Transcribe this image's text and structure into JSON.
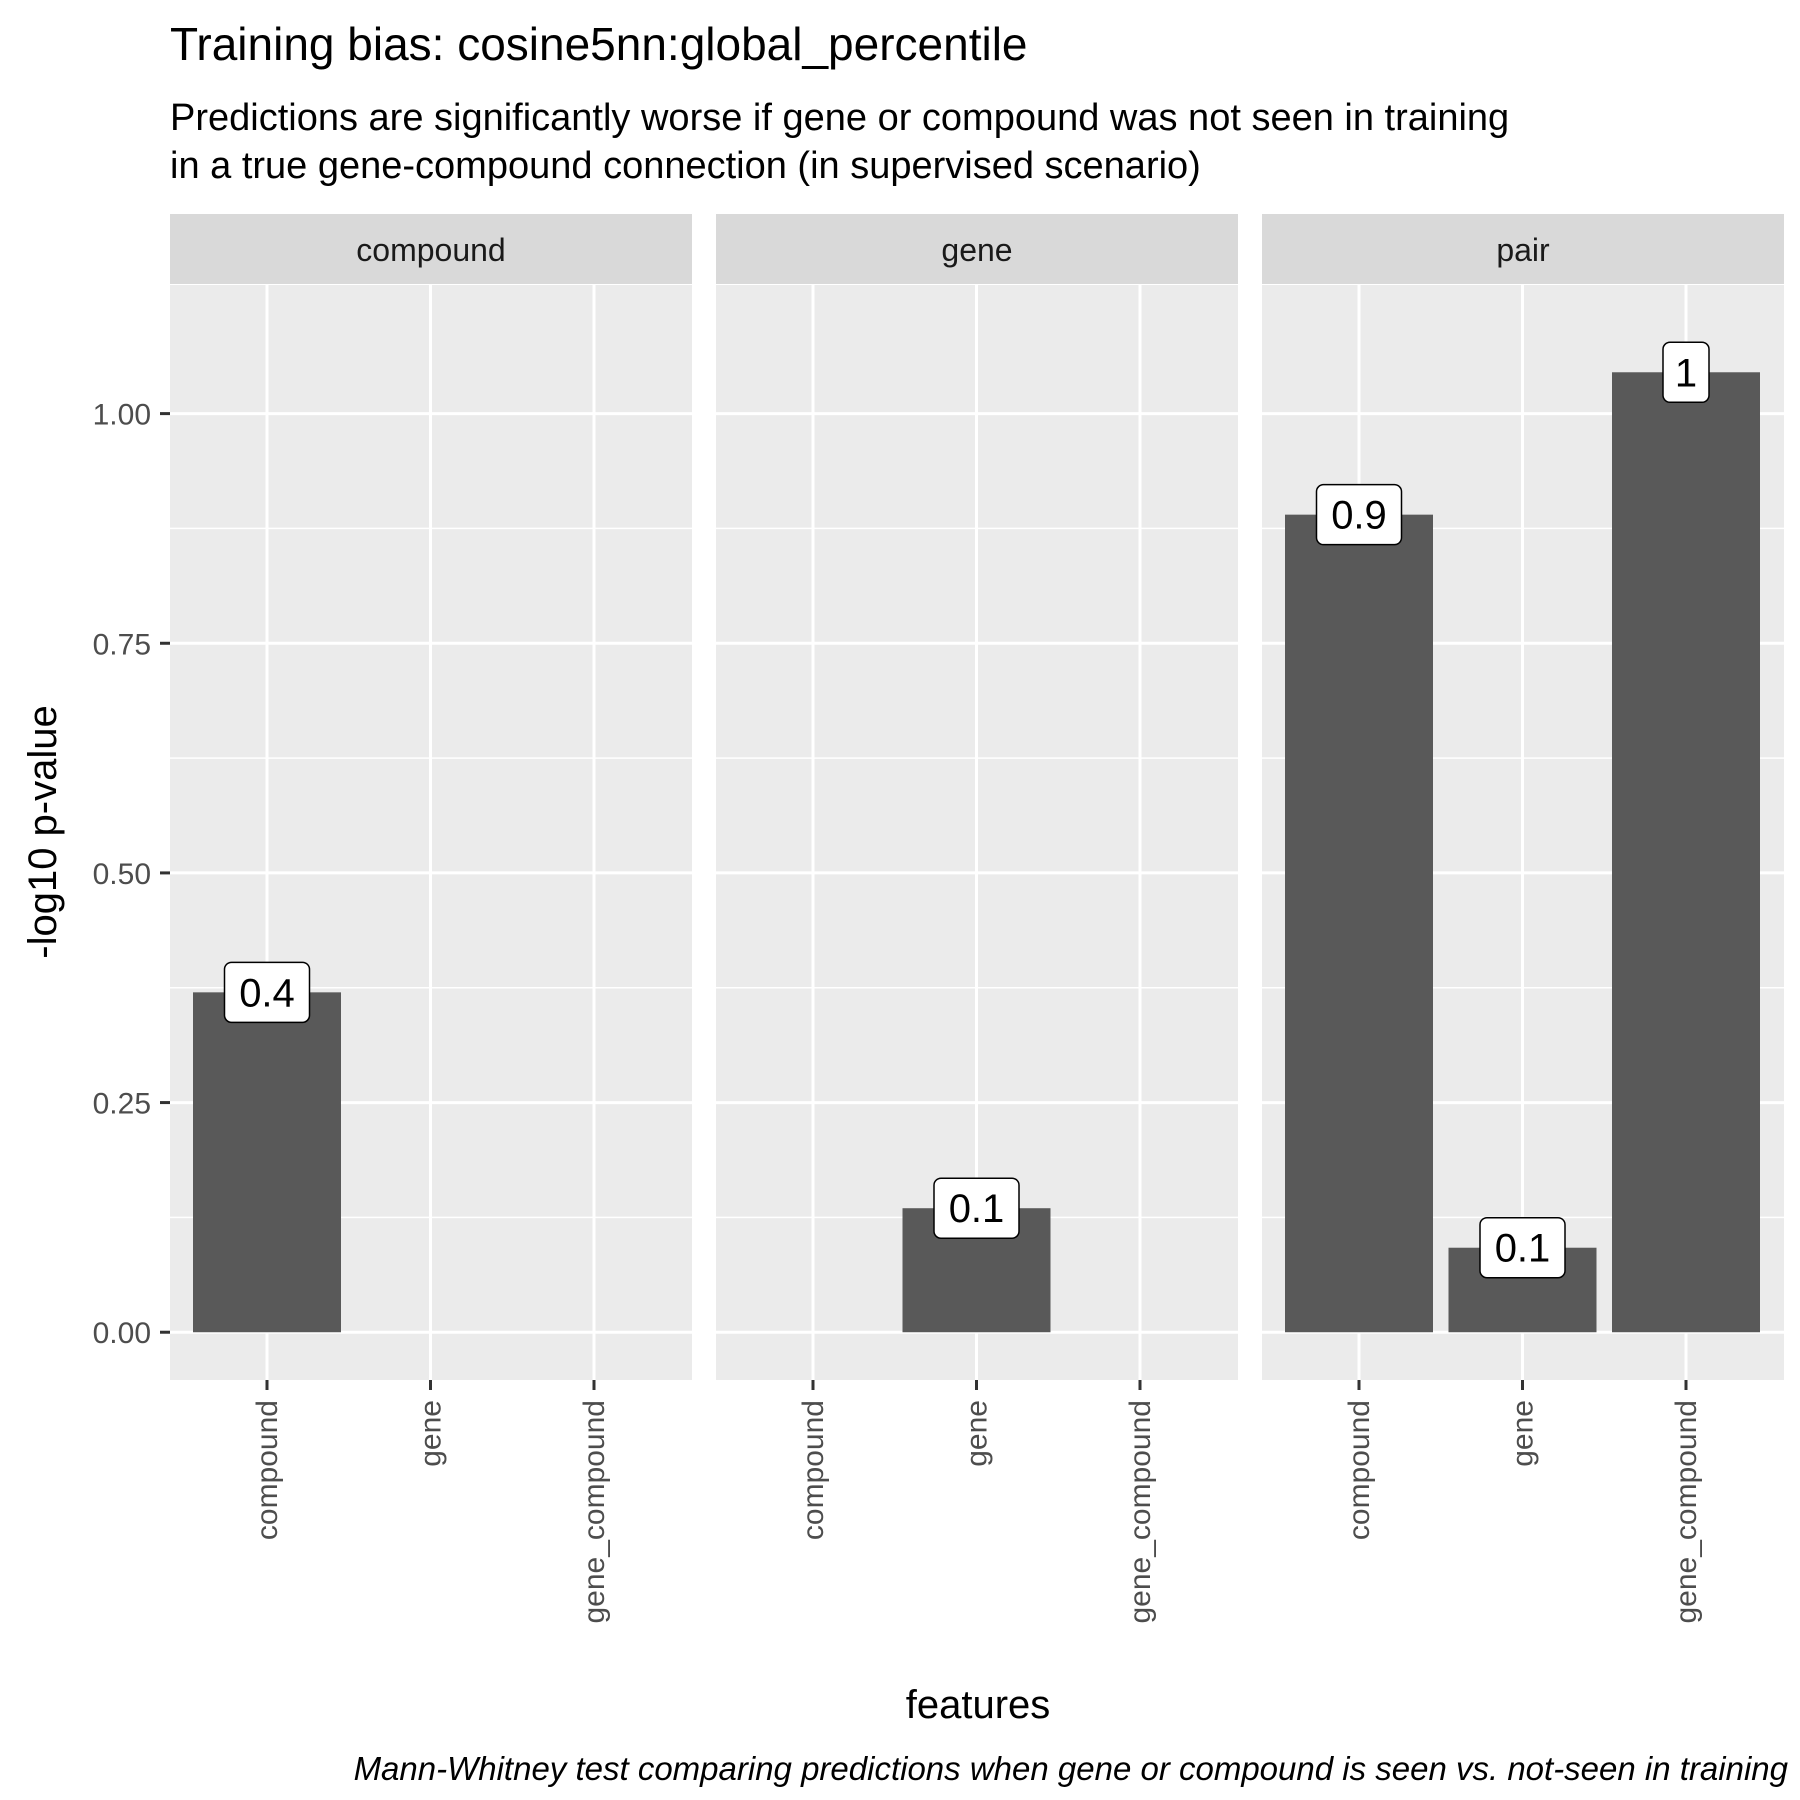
{
  "chart_data": {
    "type": "bar",
    "title": "Training bias: cosine5nn:global_percentile",
    "subtitle": [
      "Predictions are significantly worse if gene or compound was not seen in training",
      "in a true gene-compound connection (in supervised scenario)"
    ],
    "caption": "Mann-Whitney test comparing predictions when gene or compound is seen vs. not-seen in training",
    "xlabel": "features",
    "ylabel": "-log10 p-value",
    "ylim": [
      -0.052,
      1.14
    ],
    "yticks": [
      0,
      0.25,
      0.5,
      0.75,
      1.0
    ],
    "ytick_labels": [
      "0.00",
      "0.25",
      "0.50",
      "0.75",
      "1.00"
    ],
    "categories": [
      "compound",
      "gene",
      "gene_compound"
    ],
    "grid": true,
    "facets": [
      {
        "name": "compound",
        "bars": [
          {
            "category": "compound",
            "value": 0.37,
            "label": "0.4"
          }
        ]
      },
      {
        "name": "gene",
        "bars": [
          {
            "category": "gene",
            "value": 0.135,
            "label": "0.1"
          }
        ]
      },
      {
        "name": "pair",
        "bars": [
          {
            "category": "compound",
            "value": 0.89,
            "label": "0.9"
          },
          {
            "category": "gene",
            "value": 0.092,
            "label": "0.1"
          },
          {
            "category": "gene_compound",
            "value": 1.045,
            "label": "1"
          }
        ]
      }
    ],
    "colors": {
      "bar": "#595959",
      "panel_background": "#ebebeb",
      "grid": "#ffffff",
      "strip_background": "#d9d9d9"
    }
  }
}
